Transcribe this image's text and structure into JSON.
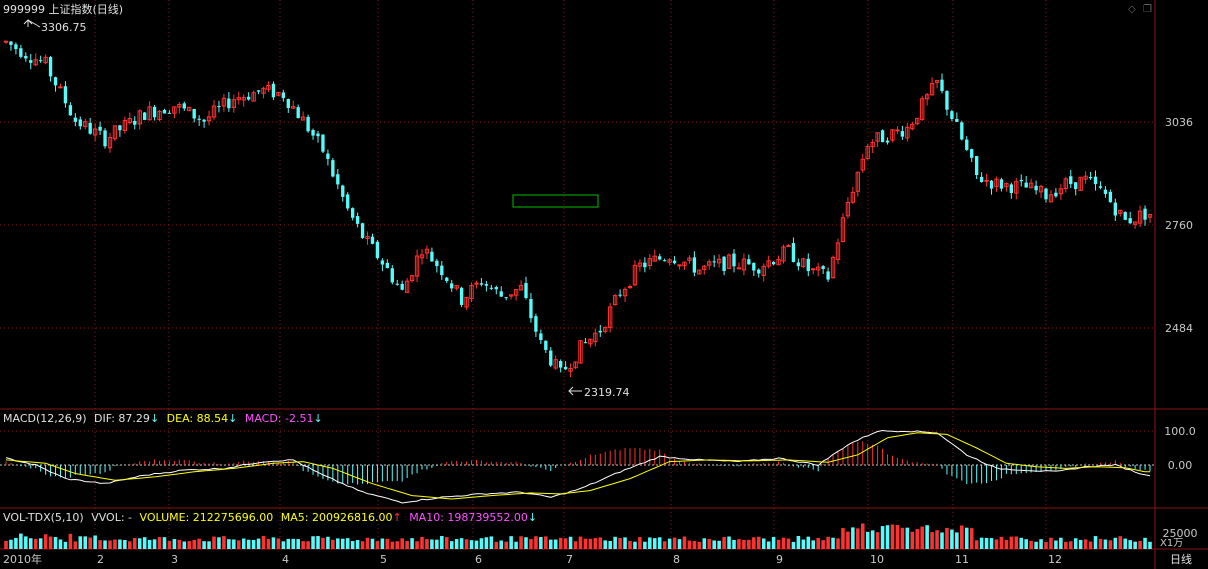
{
  "title": "999999 上证指数(日线)",
  "period_tab": "日线",
  "unit_label": "X1万",
  "icons": [
    "diamond-icon",
    "restore-icon"
  ],
  "colors": {
    "up": "#ff3232",
    "down": "#54fcfc",
    "grid": "#8a1414",
    "dif": "#ffffff",
    "dea": "#ffff00",
    "macd_label": "#ff50ff",
    "volume": "#ffff00",
    "ma5": "#ffff00",
    "ma10": "#ff50ff",
    "box": "#00c000"
  },
  "macd_header": {
    "name": "MACD(12,26,9)",
    "dif": "DIF: 87.29",
    "dea": "DEA: 88.54",
    "macd": "MACD: -2.51",
    "arrow": "↓"
  },
  "vol_header": {
    "name": "VOL-TDX(5,10)",
    "vvol": "VVOL: -",
    "volume": "VOLUME: 212275696.00",
    "ma5": "MA5: 200926816.00",
    "ma10": "MA10: 198739552.00",
    "up_arrow": "↑",
    "down_arrow": "↓"
  },
  "chart_data": [
    {
      "type": "candlestick",
      "title": "999999 上证指数(日线)",
      "y_ticks": [
        2484,
        2760,
        3036
      ],
      "ylim": [
        2320,
        3300
      ],
      "annotations": {
        "high": "3306.75",
        "low": "2319.74"
      },
      "x_month_labels": [
        "2010年",
        "2",
        "3",
        "4",
        "5",
        "6",
        "7",
        "8",
        "9",
        "10",
        "11",
        "12"
      ],
      "trend_points": [
        [
          0,
          3250
        ],
        [
          8,
          3190
        ],
        [
          14,
          3040
        ],
        [
          20,
          2990
        ],
        [
          28,
          3060
        ],
        [
          34,
          3080
        ],
        [
          40,
          3040
        ],
        [
          46,
          3100
        ],
        [
          52,
          3120
        ],
        [
          56,
          3110
        ],
        [
          60,
          3040
        ],
        [
          64,
          2960
        ],
        [
          69,
          2800
        ],
        [
          72,
          2730
        ],
        [
          76,
          2660
        ],
        [
          80,
          2580
        ],
        [
          84,
          2700
        ],
        [
          88,
          2640
        ],
        [
          92,
          2560
        ],
        [
          96,
          2610
        ],
        [
          100,
          2570
        ],
        [
          104,
          2590
        ],
        [
          108,
          2440
        ],
        [
          112,
          2360
        ],
        [
          116,
          2430
        ],
        [
          120,
          2480
        ],
        [
          124,
          2580
        ],
        [
          128,
          2650
        ],
        [
          134,
          2680
        ],
        [
          140,
          2640
        ],
        [
          146,
          2660
        ],
        [
          152,
          2650
        ],
        [
          158,
          2690
        ],
        [
          162,
          2640
        ],
        [
          166,
          2620
        ],
        [
          170,
          2820
        ],
        [
          174,
          2980
        ],
        [
          178,
          3000
        ],
        [
          182,
          3020
        ],
        [
          186,
          3100
        ],
        [
          188,
          3140
        ],
        [
          192,
          3020
        ],
        [
          196,
          2890
        ],
        [
          200,
          2870
        ],
        [
          206,
          2860
        ],
        [
          210,
          2840
        ],
        [
          214,
          2870
        ],
        [
          218,
          2880
        ],
        [
          222,
          2840
        ],
        [
          226,
          2770
        ],
        [
          230,
          2790
        ]
      ]
    },
    {
      "type": "macd",
      "name": "MACD(12,26,9)",
      "y_ticks": [
        100,
        0
      ],
      "ylim": [
        -150,
        130
      ],
      "dif_points": [
        [
          0,
          20
        ],
        [
          6,
          0
        ],
        [
          12,
          -40
        ],
        [
          20,
          -55
        ],
        [
          28,
          -30
        ],
        [
          36,
          -15
        ],
        [
          44,
          -10
        ],
        [
          52,
          10
        ],
        [
          58,
          15
        ],
        [
          64,
          -30
        ],
        [
          72,
          -80
        ],
        [
          80,
          -110
        ],
        [
          88,
          -95
        ],
        [
          96,
          -85
        ],
        [
          104,
          -80
        ],
        [
          110,
          -95
        ],
        [
          116,
          -70
        ],
        [
          124,
          -20
        ],
        [
          132,
          25
        ],
        [
          140,
          15
        ],
        [
          148,
          10
        ],
        [
          156,
          20
        ],
        [
          164,
          0
        ],
        [
          170,
          60
        ],
        [
          176,
          100
        ],
        [
          182,
          100
        ],
        [
          188,
          95
        ],
        [
          194,
          30
        ],
        [
          200,
          -10
        ],
        [
          206,
          -15
        ],
        [
          212,
          -20
        ],
        [
          218,
          -5
        ],
        [
          224,
          0
        ],
        [
          230,
          -30
        ]
      ],
      "dea_points": [
        [
          0,
          15
        ],
        [
          8,
          5
        ],
        [
          14,
          -25
        ],
        [
          22,
          -45
        ],
        [
          30,
          -35
        ],
        [
          38,
          -20
        ],
        [
          46,
          -10
        ],
        [
          54,
          5
        ],
        [
          60,
          10
        ],
        [
          66,
          -10
        ],
        [
          74,
          -55
        ],
        [
          82,
          -90
        ],
        [
          90,
          -100
        ],
        [
          98,
          -90
        ],
        [
          106,
          -82
        ],
        [
          112,
          -85
        ],
        [
          118,
          -75
        ],
        [
          126,
          -40
        ],
        [
          134,
          10
        ],
        [
          142,
          15
        ],
        [
          150,
          12
        ],
        [
          158,
          15
        ],
        [
          166,
          8
        ],
        [
          172,
          30
        ],
        [
          178,
          80
        ],
        [
          184,
          95
        ],
        [
          190,
          90
        ],
        [
          196,
          50
        ],
        [
          202,
          5
        ],
        [
          208,
          -5
        ],
        [
          214,
          -10
        ],
        [
          220,
          -5
        ],
        [
          226,
          -8
        ],
        [
          230,
          -20
        ]
      ]
    },
    {
      "type": "bar",
      "name": "VOL-TDX(5,10)",
      "y_ticks": [
        25000
      ],
      "unit": "X1万"
    }
  ]
}
